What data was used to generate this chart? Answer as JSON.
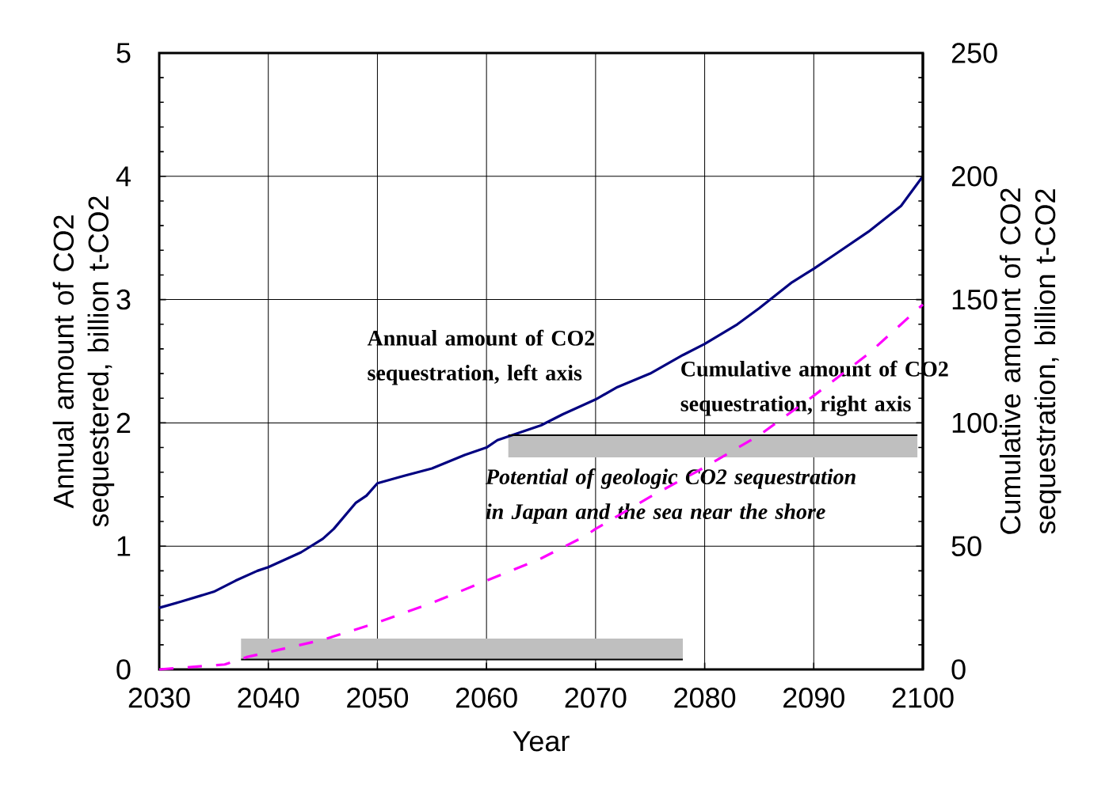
{
  "chart_data": {
    "type": "line",
    "xlabel": "Year",
    "ylabel": "Annual amount of CO2 sequestered, billion t-CO2",
    "y2label": "Cumulative amount of CO2 sequestration, billion t-CO2",
    "xlim": [
      2030,
      2100
    ],
    "xticks": [
      2030,
      2040,
      2050,
      2060,
      2070,
      2080,
      2090,
      2100
    ],
    "ylim": [
      0,
      5
    ],
    "yticks": [
      0,
      1,
      2,
      3,
      4,
      5
    ],
    "y2lim": [
      0,
      250
    ],
    "y2ticks": [
      0,
      50,
      100,
      150,
      200,
      250
    ],
    "grid": true,
    "marker": "none",
    "series": [
      {
        "color": "#000080",
        "line_style": "solid",
        "x": [
          2030,
          2032,
          2035,
          2037,
          2039,
          2040,
          2043,
          2045,
          2046,
          2048,
          2049,
          2050,
          2052,
          2055,
          2058,
          2060,
          2061,
          2065,
          2067,
          2070,
          2072,
          2075,
          2078,
          2080,
          2083,
          2085,
          2088,
          2090,
          2092,
          2095,
          2098,
          2100
        ],
        "values": [
          0.5,
          0.55,
          0.63,
          0.72,
          0.8,
          0.83,
          0.95,
          1.06,
          1.14,
          1.35,
          1.41,
          1.51,
          1.56,
          1.63,
          1.74,
          1.8,
          1.86,
          1.98,
          2.07,
          2.19,
          2.29,
          2.4,
          2.55,
          2.64,
          2.8,
          2.93,
          3.14,
          3.25,
          3.37,
          3.55,
          3.76,
          4.0
        ]
      },
      {
        "color": "#ff00ff",
        "line_style": "dashed",
        "axis": "y2",
        "x": [
          2030,
          2033,
          2036,
          2038,
          2040,
          2045,
          2050,
          2055,
          2060,
          2065,
          2069,
          2070,
          2075,
          2080,
          2085,
          2090,
          2095,
          2100
        ],
        "values": [
          0,
          1,
          2,
          5,
          7,
          12,
          19,
          27,
          36,
          45,
          54,
          57,
          70,
          82,
          95,
          111,
          128,
          148
        ]
      },
      {
        "color": "#000000",
        "line_style": "solid",
        "x": [
          2037.5,
          2078
        ],
        "values": [
          0.08,
          0.08
        ],
        "lower": [
          0.08,
          0.08
        ],
        "upper": [
          0.25,
          0.25
        ]
      },
      {
        "color": "#000000",
        "line_style": "solid",
        "x": [
          2062,
          2099.5
        ],
        "values": [
          1.9,
          1.9
        ],
        "lower": [
          1.72,
          1.72
        ],
        "upper": [
          1.9,
          1.9
        ]
      }
    ],
    "annotations": [
      "Annual amount of CO2 sequestration, left axis",
      "Cumulative amount of CO2 sequestration, right axis",
      "Potential of geologic CO2 sequestration in Japan and the sea near the shore"
    ]
  }
}
